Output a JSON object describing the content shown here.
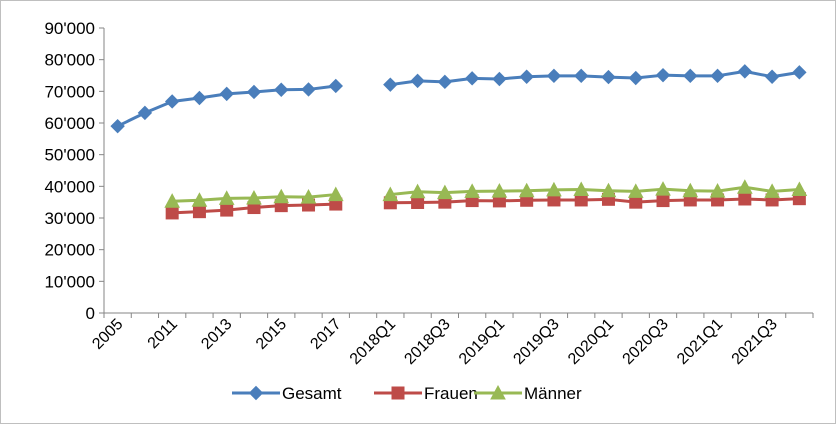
{
  "chart_data": {
    "type": "line",
    "title": "",
    "xlabel": "",
    "ylabel": "",
    "ylim": [
      0,
      90000
    ],
    "y_ticks": [
      0,
      10000,
      20000,
      30000,
      40000,
      50000,
      60000,
      70000,
      80000,
      90000
    ],
    "y_tick_labels": [
      "0",
      "10'000",
      "20'000",
      "30'000",
      "40'000",
      "50'000",
      "60'000",
      "70'000",
      "80'000",
      "90'000"
    ],
    "categories": [
      "2005",
      "2010",
      "2011",
      "2012",
      "2013",
      "2014",
      "2015",
      "2016",
      "2017",
      "",
      "2018Q1",
      "2018Q2",
      "2018Q3",
      "2018Q4",
      "2019Q1",
      "2019Q2",
      "2019Q3",
      "2019Q4",
      "2020Q1",
      "2020Q2",
      "2020Q3",
      "2020Q4",
      "2021Q1",
      "2021Q2",
      "2021Q3",
      "2021Q4"
    ],
    "x_tick_labels": [
      "2005",
      "",
      "2011",
      "",
      "2013",
      "",
      "2015",
      "",
      "2017",
      "",
      "2018Q1",
      "",
      "2018Q3",
      "",
      "2019Q1",
      "",
      "2019Q3",
      "",
      "2020Q1",
      "",
      "2020Q3",
      "",
      "2021Q1",
      "",
      "2021Q3",
      ""
    ],
    "grid": false,
    "legend_position": "bottom",
    "series": [
      {
        "name": "Gesamt",
        "color": "#4a7ebb",
        "marker": "diamond",
        "values": [
          59000,
          63200,
          66800,
          67900,
          69200,
          69800,
          70500,
          70600,
          71700,
          null,
          72100,
          73300,
          73000,
          74100,
          73900,
          74600,
          74900,
          74900,
          74500,
          74200,
          75100,
          74900,
          74900,
          76300,
          74600,
          76000
        ]
      },
      {
        "name": "Frauen",
        "color": "#be4b48",
        "marker": "square",
        "values": [
          null,
          null,
          31600,
          32000,
          32500,
          33300,
          33900,
          34100,
          34400,
          null,
          34800,
          34900,
          35000,
          35500,
          35400,
          35600,
          35700,
          35700,
          35900,
          35000,
          35500,
          35700,
          35700,
          36000,
          35700,
          36100
        ]
      },
      {
        "name": "Männer",
        "color": "#98b954",
        "marker": "triangle",
        "values": [
          null,
          null,
          35300,
          35600,
          36200,
          36300,
          36700,
          36600,
          37400,
          null,
          37400,
          38300,
          38000,
          38400,
          38500,
          38600,
          38900,
          39000,
          38600,
          38400,
          39100,
          38600,
          38500,
          39700,
          38400,
          39000
        ]
      }
    ]
  }
}
